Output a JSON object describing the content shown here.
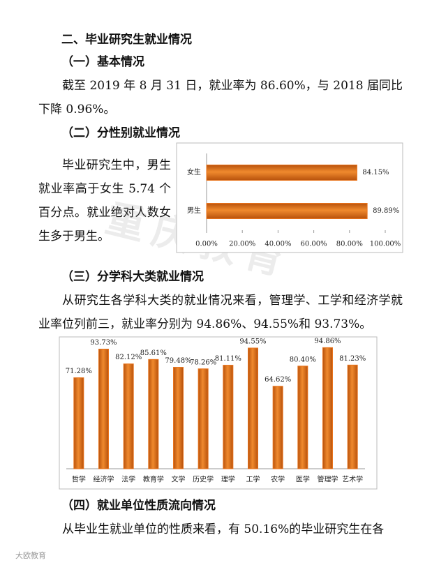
{
  "document": {
    "heading": "二、毕业研究生就业情况",
    "sections": [
      {
        "title": "（一）基本情况",
        "paragraph": "截至 2019 年 8 月 31 日，就业率为 86.60%，与 2018 届同比下降 0.96%。"
      },
      {
        "title": "（二）分性别就业情况",
        "paragraph": "毕业研究生中，男生就业率高于女生 5.74 个百分点。就业绝对人数女生多于男生。"
      },
      {
        "title": "（三）分学科大类就业情况",
        "paragraph": "从研究生各学科大类的就业情况来看，管理学、工学和经济学就业率位列前三，就业率分别为 94.86%、94.55%和 93.73%。"
      },
      {
        "title": "（四）就业单位性质流向情况",
        "paragraph": "从毕业生就业单位的性质来看，有 50.16%的毕业研究生在各"
      }
    ],
    "watermark": "重庆教育",
    "logo": "大欧教育"
  },
  "chart_data": [
    {
      "type": "hbar",
      "categories": [
        "女生",
        "男生"
      ],
      "values": [
        84.15,
        89.89
      ],
      "value_labels": [
        "84.15%",
        "89.89%"
      ],
      "color": "#e8731c",
      "xlim": [
        0,
        100
      ],
      "xticks": [
        {
          "value": 0,
          "label": "0.00%"
        },
        {
          "value": 20,
          "label": "20.00%"
        },
        {
          "value": 40,
          "label": "40.00%"
        },
        {
          "value": 60,
          "label": "60.00%"
        },
        {
          "value": 80,
          "label": "80.00%"
        },
        {
          "value": 100,
          "label": "100.00%"
        }
      ]
    },
    {
      "type": "bar",
      "categories": [
        "哲学",
        "经济学",
        "法学",
        "教育学",
        "文学",
        "历史学",
        "理学",
        "工学",
        "农学",
        "医学",
        "管理学",
        "艺术学"
      ],
      "values": [
        71.28,
        93.73,
        82.12,
        85.61,
        79.48,
        78.26,
        81.11,
        94.55,
        64.62,
        80.4,
        94.86,
        81.23
      ],
      "value_labels": [
        "71.28%",
        "93.73%",
        "82.12%",
        "85.61%",
        "79.48%",
        "78.26%",
        "81.11%",
        "94.55%",
        "64.62%",
        "80.40%",
        "94.86%",
        "81.23%"
      ],
      "color": "#e8731c",
      "ylim": [
        0,
        100
      ]
    }
  ]
}
